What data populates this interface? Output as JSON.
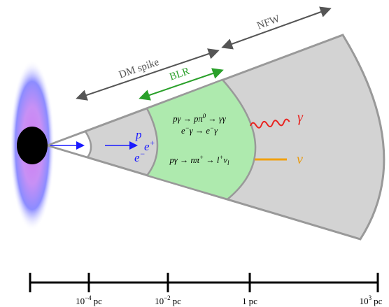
{
  "labels": {
    "nfw": "NFW",
    "dm_spike": "DM spike",
    "blr": "BLR"
  },
  "reactions": [
    [
      "pγ → pπ",
      "0",
      " → γγ"
    ],
    [
      "e",
      "−",
      "γ → e",
      "−",
      "γ"
    ],
    [
      "pγ → nπ",
      "+",
      " → l",
      "+",
      "ν",
      "l"
    ]
  ],
  "particles": {
    "p": "p",
    "e_plus": [
      "e",
      "+"
    ],
    "e_minus": [
      "e",
      "−"
    ],
    "gamma": "γ",
    "nu": "ν"
  },
  "scale": [
    {
      "base": "10",
      "exp": "−4",
      "unit": "pc"
    },
    {
      "base": "10",
      "exp": "−2",
      "unit": "pc"
    },
    {
      "base": "1",
      "unit": "pc"
    },
    {
      "base": "10",
      "exp": "3",
      "unit": "pc"
    }
  ]
}
